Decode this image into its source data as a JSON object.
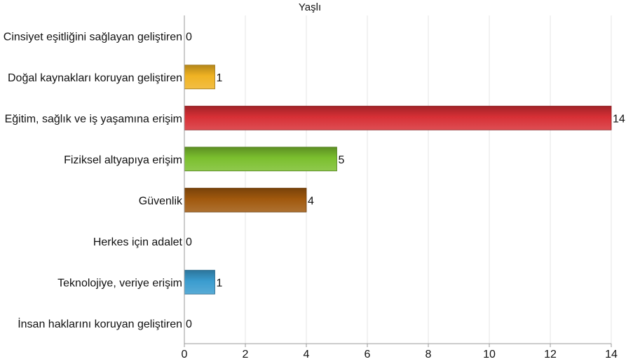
{
  "chart_data": {
    "type": "bar",
    "orientation": "horizontal",
    "title": "Yaşlı",
    "categories": [
      "Cinsiyet eşitliğini sağlayan geliştiren",
      "Doğal kaynakları koruyan geliştiren",
      "Eğitim, sağlık ve iş yaşamına erişim",
      "Fiziksel altyapıya erişim",
      "Güvenlik",
      "Herkes için adalet",
      "Teknolojiye, veriye erişim",
      "İnsan haklarını koruyan geliştiren"
    ],
    "values": [
      0,
      1,
      14,
      5,
      4,
      0,
      1,
      0
    ],
    "value_labels": [
      "0",
      "1",
      "14",
      "5",
      "4",
      "0",
      "1",
      "0"
    ],
    "bar_colors": [
      "#999999",
      "#f0b323",
      "#d72f35",
      "#7bbf2e",
      "#a0580d",
      "#999999",
      "#3a9ccf",
      "#999999"
    ],
    "x_ticks": [
      "0",
      "2",
      "4",
      "6",
      "8",
      "10",
      "12",
      "14"
    ],
    "xlim": [
      0,
      14
    ],
    "grid": true
  }
}
